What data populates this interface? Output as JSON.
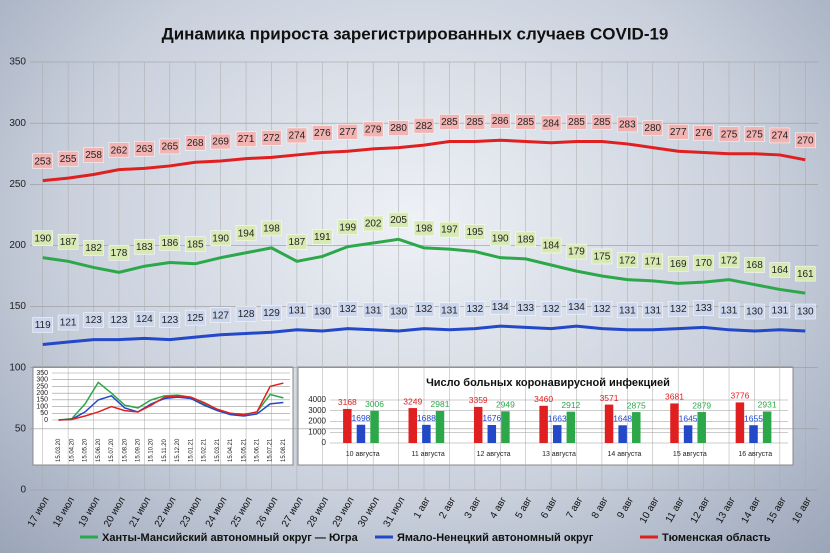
{
  "chart_data": [
    {
      "type": "line",
      "title": "Динамика прироста зарегистрированных случаев COVID-19",
      "categories": [
        "17 июл",
        "18 июл",
        "19 июл",
        "20 июл",
        "21 июл",
        "22 июл",
        "23 июл",
        "24 июл",
        "25 июл",
        "26 июл",
        "27 июл",
        "28 июл",
        "29 июл",
        "30 июл",
        "31 июл",
        "1 авг",
        "2 авг",
        "3 авг",
        "4 авг",
        "5 авг",
        "6 авг",
        "7 авг",
        "8 авг",
        "9 авг",
        "10 авг",
        "11 авг",
        "12 авг",
        "13 авг",
        "14 авг",
        "15 авг",
        "16 авг"
      ],
      "series": [
        {
          "name": "Ханты-Мансийский автономный округ — Югра",
          "color": "#2ca84a",
          "label_bg": "#d8eab4",
          "values": [
            190,
            187,
            182,
            178,
            183,
            186,
            185,
            190,
            194,
            198,
            187,
            191,
            199,
            202,
            205,
            198,
            197,
            195,
            190,
            189,
            184,
            179,
            175,
            172,
            171,
            169,
            170,
            172,
            168,
            164,
            161
          ]
        },
        {
          "name": "Ямало-Ненецкий автономный округ",
          "color": "#2348c8",
          "label_bg": "#cbd5ec",
          "values": [
            119,
            121,
            123,
            123,
            124,
            123,
            125,
            127,
            128,
            129,
            131,
            130,
            132,
            131,
            130,
            132,
            131,
            132,
            134,
            133,
            132,
            134,
            132,
            131,
            131,
            132,
            133,
            131,
            130,
            131,
            130
          ]
        },
        {
          "name": "Тюменская область",
          "color": "#e02020",
          "label_bg": "#f2b3b3",
          "values": [
            253,
            255,
            258,
            262,
            263,
            265,
            268,
            269,
            271,
            272,
            274,
            276,
            277,
            279,
            280,
            282,
            285,
            285,
            286,
            285,
            284,
            285,
            285,
            283,
            280,
            277,
            276,
            275,
            275,
            274,
            270
          ]
        }
      ],
      "ylim": [
        0,
        350
      ],
      "yticks": [
        0,
        50,
        100,
        150,
        200,
        250,
        300,
        350
      ],
      "grid": true
    },
    {
      "type": "line",
      "categories": [
        "15.03.20",
        "15.04.20",
        "15.05.20",
        "15.06.20",
        "15.07.20",
        "15.08.20",
        "15.09.20",
        "15.10.20",
        "15.11.20",
        "15.12.20",
        "15.01.21",
        "15.02.21",
        "15.03.21",
        "15.04.21",
        "15.05.21",
        "15.06.21",
        "15.07.21",
        "15.08.21"
      ],
      "series": [
        {
          "color": "#2ca84a",
          "values": [
            0,
            10,
            120,
            280,
            200,
            110,
            90,
            150,
            180,
            185,
            170,
            120,
            70,
            45,
            40,
            60,
            190,
            165
          ]
        },
        {
          "color": "#2348c8",
          "values": [
            0,
            5,
            60,
            150,
            180,
            90,
            60,
            120,
            160,
            170,
            160,
            110,
            70,
            40,
            30,
            45,
            120,
            130
          ]
        },
        {
          "color": "#e02020",
          "values": [
            0,
            5,
            30,
            60,
            100,
            70,
            60,
            110,
            170,
            180,
            170,
            130,
            80,
            50,
            40,
            60,
            250,
            275
          ]
        }
      ],
      "ylim": [
        0,
        350
      ],
      "yticks": [
        0,
        50,
        100,
        150,
        200,
        250,
        300,
        350
      ],
      "grid": true
    },
    {
      "type": "bar",
      "title": "Число больных коронавирусной  инфекцией",
      "categories": [
        "10 августа",
        "11 августа",
        "12 августа",
        "13 августа",
        "14 августа",
        "15 августа",
        "16 августа"
      ],
      "series": [
        {
          "color": "#e02020",
          "values": [
            3168,
            3249,
            3359,
            3460,
            3571,
            3681,
            3776
          ]
        },
        {
          "color": "#2348c8",
          "values": [
            1698,
            1688,
            1676,
            1663,
            1648,
            1645,
            1655
          ]
        },
        {
          "color": "#2ca84a",
          "values": [
            3006,
            2981,
            2949,
            2912,
            2875,
            2879,
            2931
          ]
        }
      ],
      "ylim": [
        0,
        4000
      ],
      "yticks": [
        0,
        1000,
        2000,
        3000,
        4000
      ],
      "grid": true
    }
  ]
}
